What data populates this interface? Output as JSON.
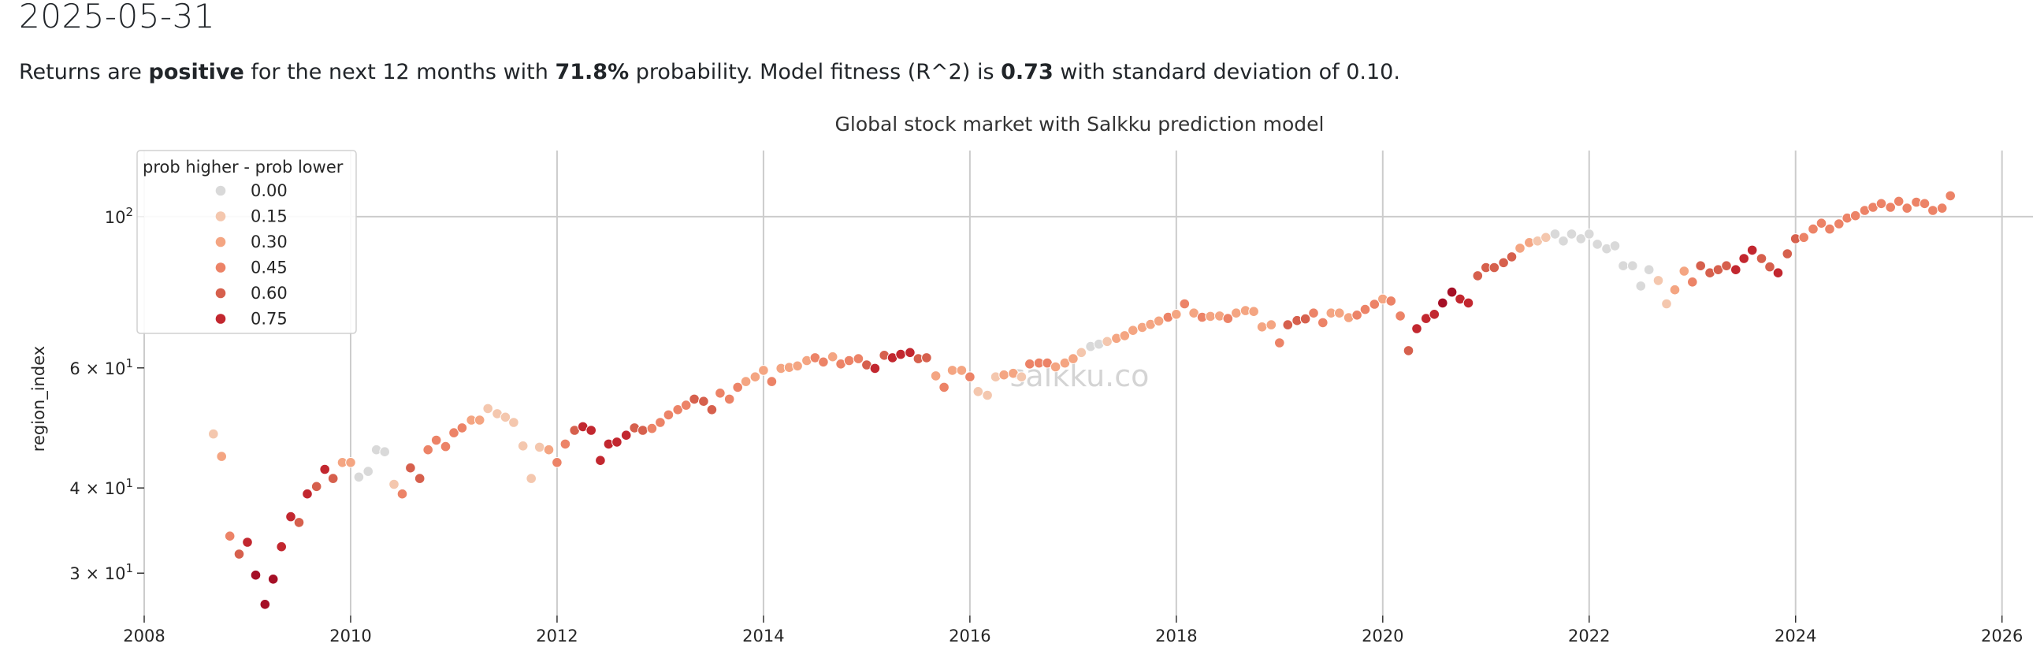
{
  "heading": {
    "date": "2025-05-31"
  },
  "summary": {
    "p1": "Returns are ",
    "direction": "positive",
    "p2": " for the next 12 months with ",
    "probability": "71.8%",
    "p3": " probability. Model fitness (R^2) is ",
    "r2": "0.73",
    "p4": " with standard deviation of ",
    "std": "0.10",
    "p5": "."
  },
  "chart_data": {
    "type": "scatter",
    "title": "Global stock market with Salkku prediction model",
    "xlabel": "",
    "ylabel": "region_index",
    "yscale": "log",
    "xlim": [
      2008,
      2026.3
    ],
    "ylim": [
      26,
      125
    ],
    "x_ticks": [
      "2008",
      "2010",
      "2012",
      "2014",
      "2016",
      "2018",
      "2020",
      "2022",
      "2024",
      "2026"
    ],
    "y_ticks": [
      {
        "value": 30,
        "base": "3",
        "mul": "×",
        "exp_base": "10",
        "exp": "1"
      },
      {
        "value": 40,
        "base": "4",
        "mul": "×",
        "exp_base": "10",
        "exp": "1"
      },
      {
        "value": 60,
        "base": "6",
        "mul": "×",
        "exp_base": "10",
        "exp": "1"
      },
      {
        "value": 100,
        "base": "",
        "mul": "",
        "exp_base": "10",
        "exp": "2"
      }
    ],
    "grid": true,
    "watermark": "salkku.co",
    "legend": {
      "title": "prob higher - prob lower",
      "placement": "top-left",
      "entries": [
        {
          "label": "0.00",
          "color": "#d9d9d9"
        },
        {
          "label": "0.15",
          "color": "#f4c7ae"
        },
        {
          "label": "0.30",
          "color": "#f4a582"
        },
        {
          "label": "0.45",
          "color": "#ec8367"
        },
        {
          "label": "0.60",
          "color": "#d6604d"
        },
        {
          "label": "0.75",
          "color": "#c2272f"
        }
      ]
    },
    "colors": {
      "l0": "#d9d9d9",
      "l1": "#f4c7ae",
      "l2": "#f4a582",
      "l3": "#ec8367",
      "l4": "#d6604d",
      "l5": "#c2272f",
      "l6": "#a50f26"
    },
    "points": [
      [
        2008.67,
        48,
        "l1"
      ],
      [
        2008.75,
        44.5,
        "l2"
      ],
      [
        2008.83,
        34,
        "l3"
      ],
      [
        2008.92,
        32,
        "l4"
      ],
      [
        2009.0,
        33.3,
        "l5"
      ],
      [
        2009.08,
        29.8,
        "l6"
      ],
      [
        2009.17,
        27,
        "l6"
      ],
      [
        2009.25,
        29.4,
        "l6"
      ],
      [
        2009.33,
        32.8,
        "l5"
      ],
      [
        2009.42,
        36.3,
        "l5"
      ],
      [
        2009.5,
        35.6,
        "l4"
      ],
      [
        2009.58,
        39.2,
        "l5"
      ],
      [
        2009.67,
        40.2,
        "l4"
      ],
      [
        2009.75,
        42.6,
        "l5"
      ],
      [
        2009.83,
        41.3,
        "l4"
      ],
      [
        2009.92,
        43.6,
        "l2"
      ],
      [
        2010.0,
        43.6,
        "l2"
      ],
      [
        2010.08,
        41.5,
        "l0"
      ],
      [
        2010.17,
        42.3,
        "l0"
      ],
      [
        2010.25,
        45.5,
        "l0"
      ],
      [
        2010.33,
        45.2,
        "l0"
      ],
      [
        2010.42,
        40.5,
        "l1"
      ],
      [
        2010.5,
        39.2,
        "l3"
      ],
      [
        2010.58,
        42.8,
        "l4"
      ],
      [
        2010.67,
        41.3,
        "l4"
      ],
      [
        2010.75,
        45.5,
        "l3"
      ],
      [
        2010.83,
        47,
        "l3"
      ],
      [
        2010.92,
        46,
        "l3"
      ],
      [
        2011.0,
        48.2,
        "l3"
      ],
      [
        2011.08,
        49,
        "l3"
      ],
      [
        2011.17,
        50.3,
        "l2"
      ],
      [
        2011.25,
        50.3,
        "l2"
      ],
      [
        2011.33,
        52.3,
        "l1"
      ],
      [
        2011.42,
        51.4,
        "l1"
      ],
      [
        2011.5,
        50.8,
        "l1"
      ],
      [
        2011.58,
        49.9,
        "l1"
      ],
      [
        2011.67,
        46.1,
        "l1"
      ],
      [
        2011.75,
        41.3,
        "l1"
      ],
      [
        2011.83,
        45.9,
        "l1"
      ],
      [
        2011.92,
        45.5,
        "l2"
      ],
      [
        2012.0,
        43.6,
        "l3"
      ],
      [
        2012.08,
        46.4,
        "l3"
      ],
      [
        2012.17,
        48.6,
        "l4"
      ],
      [
        2012.25,
        49.2,
        "l5"
      ],
      [
        2012.33,
        48.6,
        "l5"
      ],
      [
        2012.42,
        43.9,
        "l5"
      ],
      [
        2012.5,
        46.4,
        "l5"
      ],
      [
        2012.58,
        46.7,
        "l5"
      ],
      [
        2012.67,
        47.8,
        "l5"
      ],
      [
        2012.75,
        49,
        "l4"
      ],
      [
        2012.83,
        48.6,
        "l4"
      ],
      [
        2012.92,
        48.9,
        "l3"
      ],
      [
        2013.0,
        49.9,
        "l3"
      ],
      [
        2013.08,
        51.2,
        "l3"
      ],
      [
        2013.17,
        52.1,
        "l3"
      ],
      [
        2013.25,
        52.9,
        "l3"
      ],
      [
        2013.33,
        54,
        "l4"
      ],
      [
        2013.42,
        53.6,
        "l4"
      ],
      [
        2013.5,
        52.1,
        "l4"
      ],
      [
        2013.58,
        55.1,
        "l3"
      ],
      [
        2013.67,
        54,
        "l3"
      ],
      [
        2013.75,
        56.2,
        "l3"
      ],
      [
        2013.83,
        57.3,
        "l2"
      ],
      [
        2013.92,
        58.2,
        "l2"
      ],
      [
        2014.0,
        59.5,
        "l2"
      ],
      [
        2014.08,
        57.3,
        "l3"
      ],
      [
        2014.17,
        59.9,
        "l2"
      ],
      [
        2014.25,
        60.1,
        "l2"
      ],
      [
        2014.33,
        60.4,
        "l2"
      ],
      [
        2014.42,
        61.5,
        "l2"
      ],
      [
        2014.5,
        62.1,
        "l3"
      ],
      [
        2014.58,
        61.2,
        "l3"
      ],
      [
        2014.67,
        62.3,
        "l2"
      ],
      [
        2014.75,
        60.8,
        "l3"
      ],
      [
        2014.83,
        61.5,
        "l3"
      ],
      [
        2014.92,
        61.9,
        "l3"
      ],
      [
        2015.0,
        60.6,
        "l4"
      ],
      [
        2015.08,
        59.9,
        "l5"
      ],
      [
        2015.17,
        62.6,
        "l4"
      ],
      [
        2015.25,
        62.1,
        "l5"
      ],
      [
        2015.33,
        62.8,
        "l5"
      ],
      [
        2015.42,
        63.2,
        "l5"
      ],
      [
        2015.5,
        61.9,
        "l4"
      ],
      [
        2015.58,
        62.1,
        "l4"
      ],
      [
        2015.67,
        58.4,
        "l2"
      ],
      [
        2015.75,
        56.2,
        "l3"
      ],
      [
        2015.83,
        59.5,
        "l2"
      ],
      [
        2015.92,
        59.5,
        "l2"
      ],
      [
        2016.0,
        58.2,
        "l3"
      ],
      [
        2016.08,
        55.4,
        "l1"
      ],
      [
        2016.17,
        54.7,
        "l1"
      ],
      [
        2016.25,
        58.2,
        "l1"
      ],
      [
        2016.33,
        58.6,
        "l2"
      ],
      [
        2016.42,
        58.9,
        "l2"
      ],
      [
        2016.5,
        58.2,
        "l1"
      ],
      [
        2016.58,
        60.8,
        "l3"
      ],
      [
        2016.67,
        61,
        "l3"
      ],
      [
        2016.75,
        61,
        "l3"
      ],
      [
        2016.83,
        60.2,
        "l2"
      ],
      [
        2016.92,
        61,
        "l2"
      ],
      [
        2017.0,
        61.9,
        "l2"
      ],
      [
        2017.08,
        63.2,
        "l1"
      ],
      [
        2017.17,
        64.5,
        "l0"
      ],
      [
        2017.25,
        65,
        "l0"
      ],
      [
        2017.33,
        65.6,
        "l1"
      ],
      [
        2017.42,
        66.3,
        "l2"
      ],
      [
        2017.5,
        66.9,
        "l2"
      ],
      [
        2017.58,
        68.1,
        "l2"
      ],
      [
        2017.67,
        68.8,
        "l2"
      ],
      [
        2017.75,
        69.5,
        "l2"
      ],
      [
        2017.83,
        70.3,
        "l2"
      ],
      [
        2017.92,
        71.2,
        "l3"
      ],
      [
        2018.0,
        71.9,
        "l2"
      ],
      [
        2018.08,
        74.5,
        "l3"
      ],
      [
        2018.17,
        72.2,
        "l2"
      ],
      [
        2018.25,
        71.2,
        "l3"
      ],
      [
        2018.33,
        71.4,
        "l2"
      ],
      [
        2018.42,
        71.5,
        "l2"
      ],
      [
        2018.5,
        70.9,
        "l3"
      ],
      [
        2018.58,
        72.2,
        "l2"
      ],
      [
        2018.67,
        72.8,
        "l2"
      ],
      [
        2018.75,
        72.6,
        "l2"
      ],
      [
        2018.83,
        68.9,
        "l2"
      ],
      [
        2018.92,
        69.4,
        "l2"
      ],
      [
        2019.0,
        65.3,
        "l3"
      ],
      [
        2019.08,
        69.4,
        "l4"
      ],
      [
        2019.17,
        70.4,
        "l4"
      ],
      [
        2019.25,
        70.8,
        "l4"
      ],
      [
        2019.33,
        72.2,
        "l3"
      ],
      [
        2019.42,
        69.9,
        "l3"
      ],
      [
        2019.5,
        72.2,
        "l2"
      ],
      [
        2019.58,
        72.2,
        "l2"
      ],
      [
        2019.67,
        71.1,
        "l2"
      ],
      [
        2019.75,
        71.7,
        "l3"
      ],
      [
        2019.83,
        73.1,
        "l3"
      ],
      [
        2019.92,
        74.4,
        "l3"
      ],
      [
        2020.0,
        75.7,
        "l2"
      ],
      [
        2020.08,
        75.2,
        "l3"
      ],
      [
        2020.17,
        71.5,
        "l3"
      ],
      [
        2020.25,
        63.6,
        "l4"
      ],
      [
        2020.33,
        68.5,
        "l5"
      ],
      [
        2020.42,
        70.9,
        "l5"
      ],
      [
        2020.5,
        71.9,
        "l5"
      ],
      [
        2020.58,
        74.7,
        "l6"
      ],
      [
        2020.67,
        77.5,
        "l6"
      ],
      [
        2020.75,
        75.7,
        "l5"
      ],
      [
        2020.83,
        74.7,
        "l5"
      ],
      [
        2020.92,
        81.9,
        "l4"
      ],
      [
        2021.0,
        84.2,
        "l4"
      ],
      [
        2021.08,
        84.2,
        "l4"
      ],
      [
        2021.17,
        85.6,
        "l4"
      ],
      [
        2021.25,
        87.3,
        "l4"
      ],
      [
        2021.33,
        89.9,
        "l2"
      ],
      [
        2021.42,
        91.6,
        "l2"
      ],
      [
        2021.5,
        92.1,
        "l1"
      ],
      [
        2021.58,
        93.2,
        "l1"
      ],
      [
        2021.67,
        94.3,
        "l0"
      ],
      [
        2021.75,
        92.1,
        "l0"
      ],
      [
        2021.83,
        94.3,
        "l0"
      ],
      [
        2021.92,
        92.8,
        "l0"
      ],
      [
        2022.0,
        94.3,
        "l0"
      ],
      [
        2022.08,
        91.1,
        "l0"
      ],
      [
        2022.17,
        89.7,
        "l0"
      ],
      [
        2022.25,
        90.6,
        "l0"
      ],
      [
        2022.33,
        84.7,
        "l0"
      ],
      [
        2022.42,
        84.7,
        "l0"
      ],
      [
        2022.5,
        79.1,
        "l0"
      ],
      [
        2022.58,
        83.6,
        "l0"
      ],
      [
        2022.67,
        80.6,
        "l1"
      ],
      [
        2022.75,
        74.5,
        "l1"
      ],
      [
        2022.83,
        78.1,
        "l2"
      ],
      [
        2022.92,
        83.2,
        "l2"
      ],
      [
        2023.0,
        80.2,
        "l3"
      ],
      [
        2023.08,
        84.7,
        "l4"
      ],
      [
        2023.17,
        82.7,
        "l4"
      ],
      [
        2023.25,
        83.6,
        "l4"
      ],
      [
        2023.33,
        84.7,
        "l4"
      ],
      [
        2023.42,
        83.6,
        "l5"
      ],
      [
        2023.5,
        86.8,
        "l5"
      ],
      [
        2023.58,
        89.3,
        "l5"
      ],
      [
        2023.67,
        86.8,
        "l4"
      ],
      [
        2023.75,
        84.4,
        "l4"
      ],
      [
        2023.83,
        82.7,
        "l5"
      ],
      [
        2023.92,
        88.2,
        "l4"
      ],
      [
        2024.0,
        92.8,
        "l4"
      ],
      [
        2024.08,
        93.2,
        "l3"
      ],
      [
        2024.17,
        95.9,
        "l3"
      ],
      [
        2024.25,
        97.8,
        "l3"
      ],
      [
        2024.33,
        95.9,
        "l3"
      ],
      [
        2024.42,
        97.6,
        "l3"
      ],
      [
        2024.5,
        99.5,
        "l3"
      ],
      [
        2024.58,
        100.3,
        "l3"
      ],
      [
        2024.67,
        102.1,
        "l3"
      ],
      [
        2024.75,
        103.2,
        "l3"
      ],
      [
        2024.83,
        104.5,
        "l3"
      ],
      [
        2024.92,
        103.2,
        "l3"
      ],
      [
        2025.0,
        105.3,
        "l3"
      ],
      [
        2025.08,
        102.9,
        "l3"
      ],
      [
        2025.17,
        105,
        "l3"
      ],
      [
        2025.25,
        104.5,
        "l3"
      ],
      [
        2025.33,
        102.1,
        "l3"
      ],
      [
        2025.42,
        102.9,
        "l3"
      ],
      [
        2025.5,
        107.3,
        "l3"
      ]
    ]
  }
}
